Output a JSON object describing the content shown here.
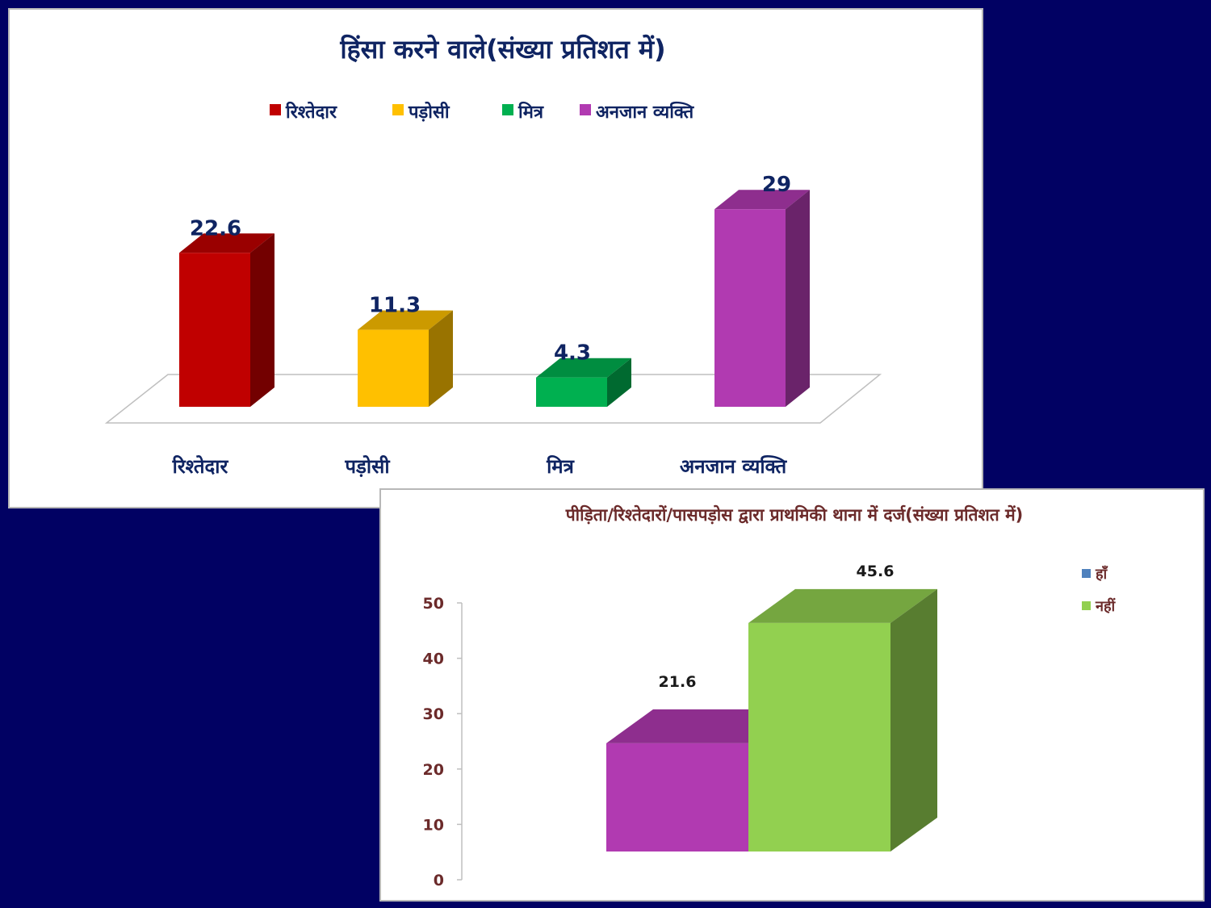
{
  "chart_data": [
    {
      "type": "bar",
      "title": "हिंसा करने वाले(संख्या प्रतिशत में)",
      "categories": [
        "रिश्तेदार",
        "पड़ोसी",
        "मित्र",
        "अनजान व्यक्ति"
      ],
      "values": [
        22.6,
        11.3,
        4.3,
        29
      ],
      "colors": [
        "#c00000",
        "#ffc000",
        "#00b050",
        "#b13ab1"
      ],
      "legend": {
        "placement": "top",
        "entries": [
          "रिश्तेदार",
          "पड़ोसी",
          "मित्र",
          "अनजान व्यक्ति"
        ]
      },
      "ylim": [
        0,
        30
      ],
      "grid": false,
      "style": "3d-column"
    },
    {
      "type": "bar",
      "title": "पीड़िता/रिश्तेदारों/पासपड़ोस द्वारा प्राथमिकी थाना में दर्ज(संख्या प्रतिशत में)",
      "series": [
        {
          "name": "हाँ",
          "values": [
            21.6
          ],
          "color": "#b13ab1",
          "legend_color": "#4f81bd"
        },
        {
          "name": "नहीं",
          "values": [
            45.6
          ],
          "color": "#92d050",
          "legend_color": "#92d050"
        }
      ],
      "yticks": [
        "0",
        "10",
        "20",
        "30",
        "40",
        "50"
      ],
      "ylim": [
        0,
        50
      ],
      "legend": {
        "placement": "top-right"
      },
      "grid": false,
      "style": "3d-column"
    }
  ]
}
